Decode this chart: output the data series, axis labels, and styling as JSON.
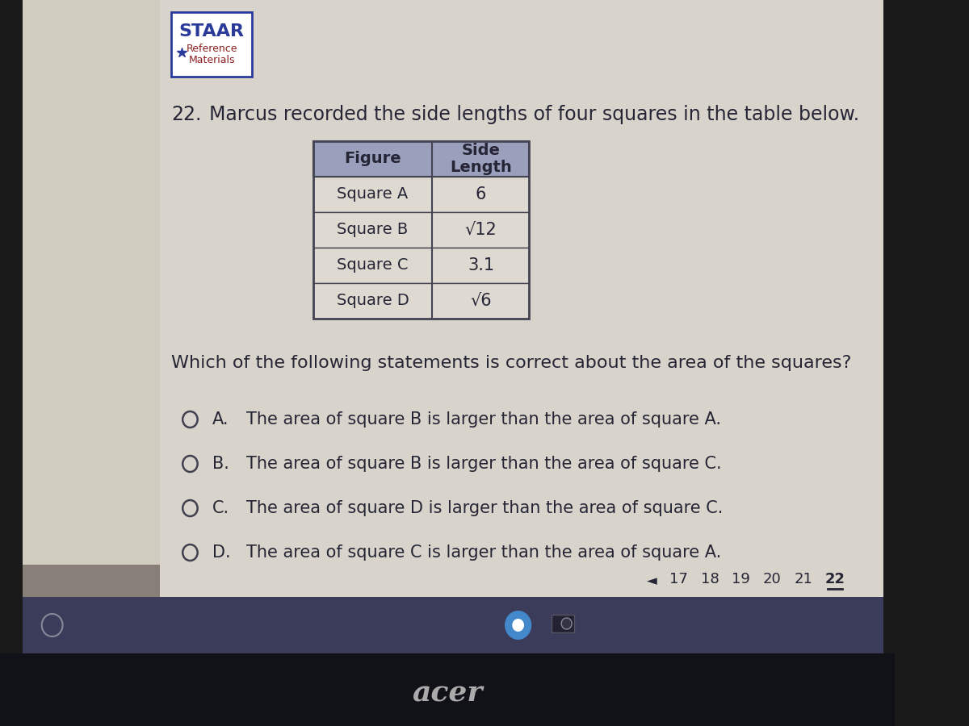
{
  "bg_color": "#1a1a1a",
  "left_bar_color": "#c44444",
  "screen_bg": "#d8d4cc",
  "content_bg": "#d8d4cc",
  "bottom_taskbar_color": "#3a3a4a",
  "bottom_acer_bar": "#1a1a1a",
  "title_number": "22.",
  "title_text": "Marcus recorded the side lengths of four squares in the table below.",
  "table_headers": [
    "Figure",
    "Side\nLength"
  ],
  "table_rows": [
    [
      "Square A",
      "6"
    ],
    [
      "Square B",
      "√12"
    ],
    [
      "Square C",
      "3.1"
    ],
    [
      "Square D",
      "√6"
    ]
  ],
  "question_text": "Which of the following statements is correct about the area of the squares?",
  "options": [
    [
      "A",
      "The area of square B is larger than the area of square A."
    ],
    [
      "B",
      "The area of square B is larger than the area of square C."
    ],
    [
      "C",
      "The area of square D is larger than the area of square C."
    ],
    [
      "D",
      "The area of square C is larger than the area of square A."
    ]
  ],
  "page_numbers": [
    "17",
    "18",
    "19",
    "20",
    "21",
    "22"
  ],
  "current_page": "22",
  "header_bg": "#9aa0bc",
  "table_row_bg": "#dddad2",
  "table_border": "#444455",
  "text_color": "#252535",
  "staar_border_color": "#2a3a9a",
  "staar_text_color": "#2a3a9a",
  "ref_text_color": "#8b2020",
  "navbar_bg": "#888078",
  "circle_color": "#404050",
  "chrome_icon_color": "#4488cc",
  "camera_icon_color": "#222233"
}
